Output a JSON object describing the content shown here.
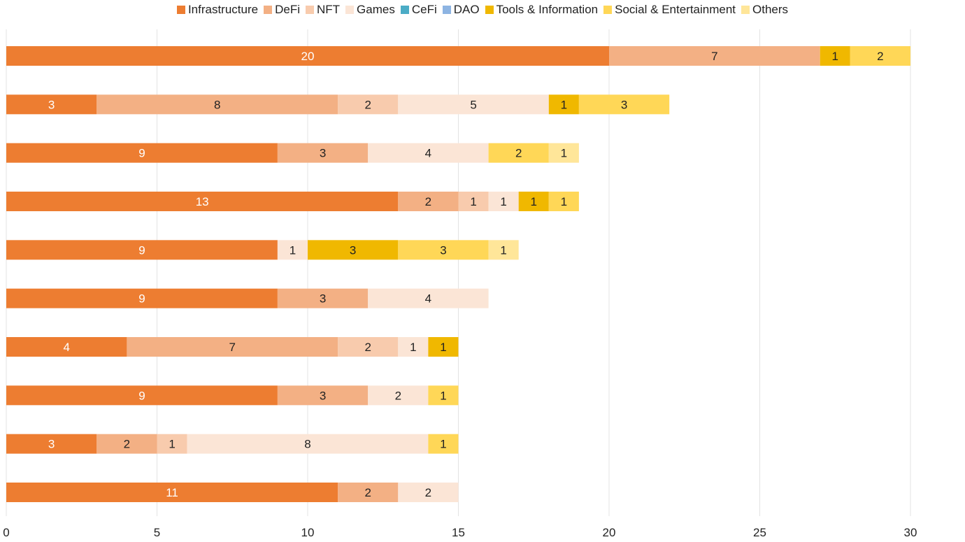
{
  "chart_data": {
    "type": "bar",
    "orientation": "horizontal",
    "stacked": true,
    "legend_position": "top",
    "grid": true,
    "xlim": [
      0,
      30
    ],
    "xticks": [
      "0",
      "5",
      "10",
      "15",
      "20",
      "25",
      "30"
    ],
    "series": [
      {
        "name": "Infrastructure",
        "color": "#ED7D31",
        "values": [
          20,
          3,
          9,
          13,
          9,
          9,
          4,
          9,
          3,
          11
        ]
      },
      {
        "name": "DeFi",
        "color": "#F3B084",
        "values": [
          7,
          8,
          3,
          2,
          0,
          3,
          7,
          3,
          2,
          2
        ]
      },
      {
        "name": "NFT",
        "color": "#F8CBAD",
        "values": [
          0,
          2,
          0,
          1,
          0,
          0,
          2,
          0,
          1,
          0
        ]
      },
      {
        "name": "Games",
        "color": "#FBE5D6",
        "values": [
          0,
          5,
          4,
          1,
          1,
          4,
          1,
          2,
          8,
          2
        ]
      },
      {
        "name": "CeFi",
        "color": "#4BACC6",
        "values": [
          0,
          0,
          0,
          0,
          0,
          0,
          0,
          0,
          0,
          0
        ]
      },
      {
        "name": "DAO",
        "color": "#8DB4E2",
        "values": [
          0,
          0,
          0,
          0,
          0,
          0,
          0,
          0,
          0,
          0
        ]
      },
      {
        "name": "Tools & Information",
        "color": "#F0B800",
        "values": [
          1,
          1,
          0,
          1,
          3,
          0,
          1,
          0,
          0,
          0
        ]
      },
      {
        "name": "Social & Entertainment",
        "color": "#FFD757",
        "values": [
          2,
          3,
          2,
          1,
          3,
          0,
          0,
          1,
          1,
          0
        ]
      },
      {
        "name": "Others",
        "color": "#FFE699",
        "values": [
          0,
          0,
          1,
          0,
          1,
          0,
          0,
          0,
          0,
          0
        ]
      }
    ]
  }
}
